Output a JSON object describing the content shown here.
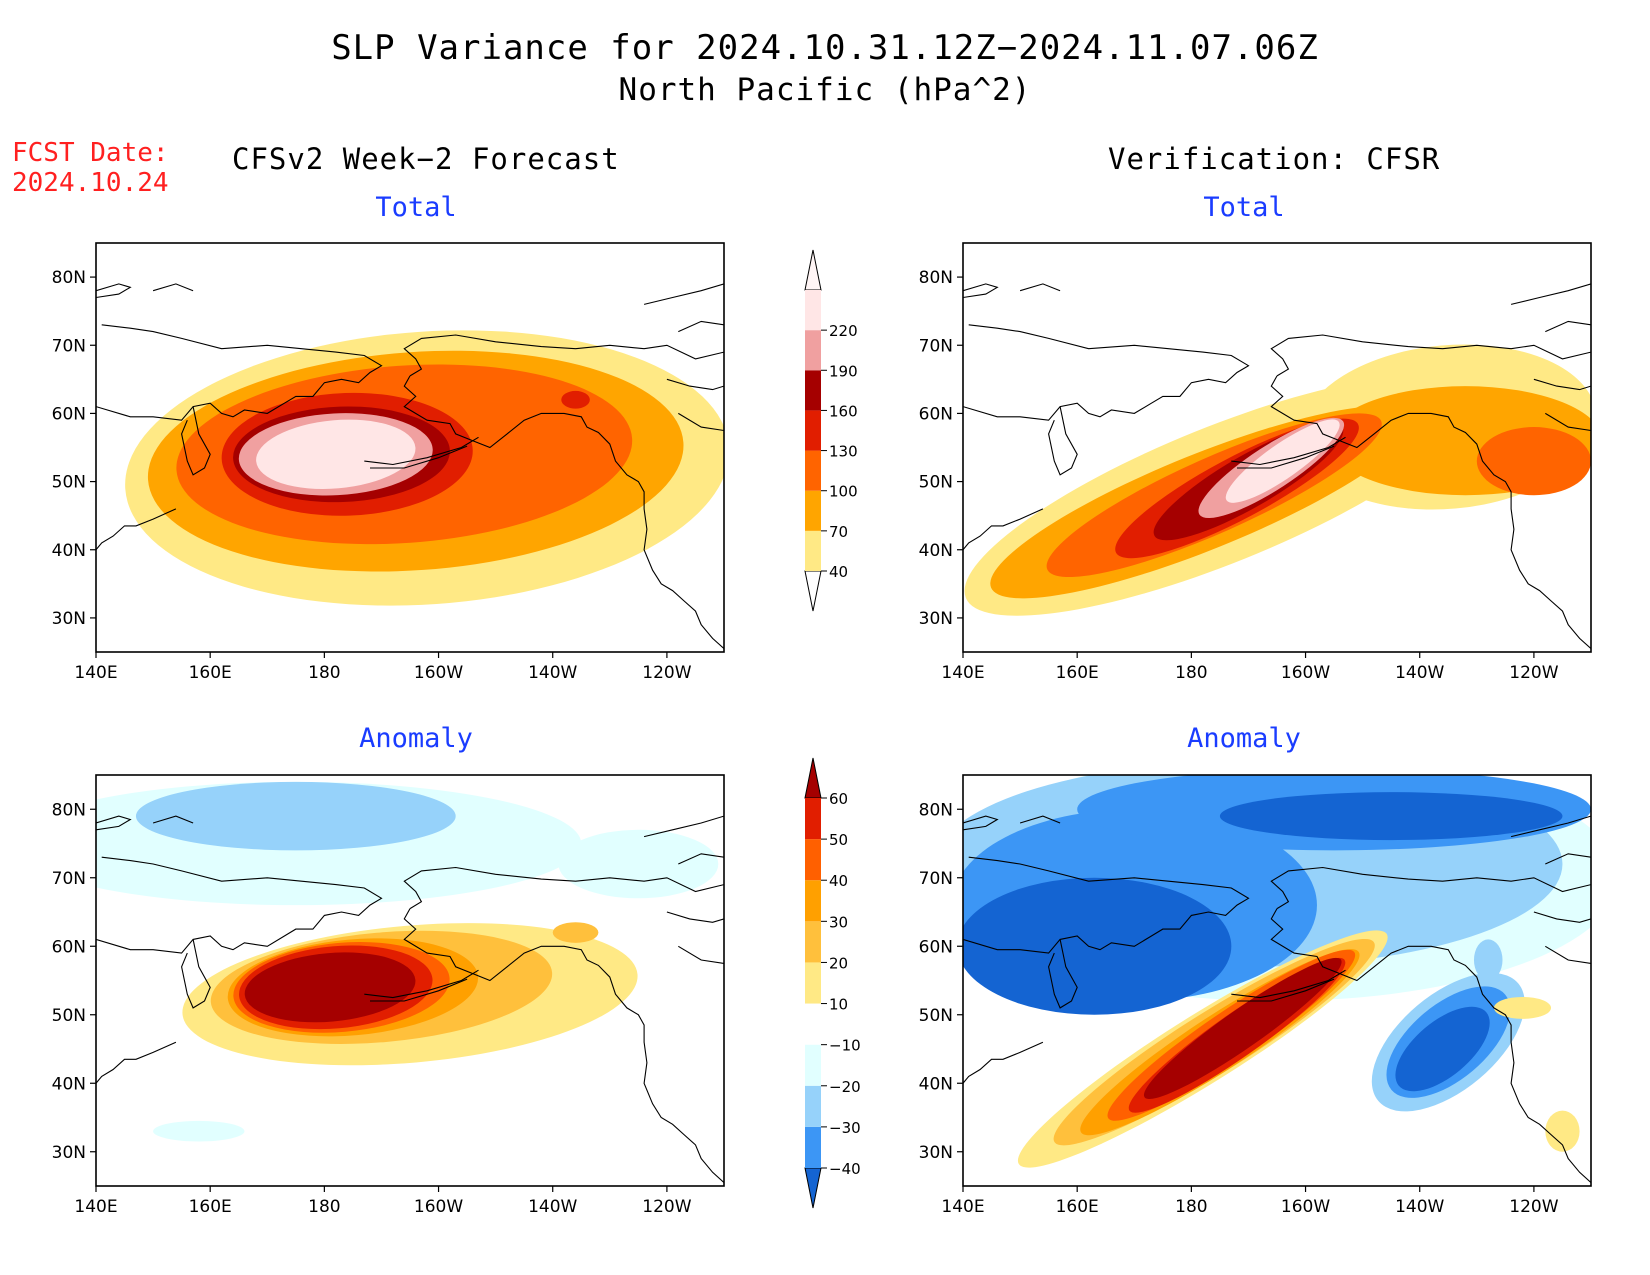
{
  "title_line1": "SLP Variance for 2024.10.31.12Z−2024.11.07.06Z",
  "title_line2": "North Pacific (hPa^2)",
  "fcst_label": "FCST Date:",
  "fcst_date": "2024.10.24",
  "left_header": "CFSv2 Week−2 Forecast",
  "right_header": "Verification: CFSR",
  "panel_subtitles": {
    "top_left": "Total",
    "top_right": "Total",
    "bottom_left": "Anomaly",
    "bottom_right": "Anomaly"
  },
  "lat_labels": [
    "80N",
    "70N",
    "60N",
    "50N",
    "40N",
    "30N"
  ],
  "lon_labels": [
    "140E",
    "160E",
    "180",
    "160W",
    "140W",
    "120W"
  ],
  "colorbars": {
    "total": {
      "levels": [
        "40",
        "70",
        "100",
        "130",
        "160",
        "190",
        "220"
      ],
      "colors": [
        "#ffe985",
        "#ffa500",
        "#ff6400",
        "#e11e00",
        "#a50000",
        "#f0a0a0",
        "#ffe6e6"
      ],
      "extend_colors": {
        "below": "#ffffff",
        "above": "#fff5f5"
      }
    },
    "anomaly": {
      "levels": [
        "−40",
        "−30",
        "−20",
        "−10",
        "10",
        "20",
        "30",
        "40",
        "50",
        "60"
      ],
      "colors": [
        "#1464d2",
        "#3c96f5",
        "#96d2fa",
        "#e1ffff",
        "#ffffff",
        "#ffe985",
        "#ffc03c",
        "#ffa000",
        "#ff6000",
        "#e11e00",
        "#a50000"
      ]
    }
  },
  "chart_data": [
    {
      "type": "heatmap",
      "panel": "CFSv2 Week−2 Forecast — Total",
      "units": "hPa^2",
      "xlim": [
        140,
        250
      ],
      "ylim": [
        25,
        85
      ],
      "fields": [
        {
          "level": 40,
          "color": "#ffe985",
          "center": [
            198,
            52
          ],
          "radius": [
            53,
            20
          ],
          "angle": 4
        },
        {
          "level": 70,
          "color": "#ffa500",
          "center": [
            196,
            53
          ],
          "radius": [
            47,
            16
          ],
          "angle": 4
        },
        {
          "level": 100,
          "color": "#ff6400",
          "center": [
            194,
            54
          ],
          "radius": [
            40,
            13
          ],
          "angle": 4
        },
        {
          "level": 130,
          "color": "#e11e00",
          "center": [
            184,
            54
          ],
          "radius": [
            22,
            9
          ],
          "angle": 2
        },
        {
          "level": 160,
          "color": "#a50000",
          "center": [
            183,
            54
          ],
          "radius": [
            19,
            7
          ],
          "angle": 2
        },
        {
          "level": 190,
          "color": "#f0a0a0",
          "center": [
            182,
            54
          ],
          "radius": [
            17,
            6
          ],
          "angle": 3
        },
        {
          "level": 220,
          "color": "#ffe6e6",
          "center": [
            182,
            54
          ],
          "radius": [
            14,
            5
          ],
          "angle": 5
        },
        {
          "level": 130,
          "color": "#e11e00",
          "center": [
            224,
            62
          ],
          "radius": [
            2.5,
            1.3
          ],
          "angle": 0
        }
      ]
    },
    {
      "type": "heatmap",
      "panel": "Verification: CFSR — Total",
      "units": "hPa^2",
      "xlim": [
        140,
        250
      ],
      "ylim": [
        25,
        85
      ],
      "fields": [
        {
          "level": 40,
          "color": "#ffe985",
          "center": [
            185,
            48
          ],
          "radius": [
            48,
            10
          ],
          "angle": 22
        },
        {
          "level": 40,
          "color": "#ffe985",
          "center": [
            225,
            58
          ],
          "radius": [
            26,
            12
          ],
          "angle": 5
        },
        {
          "level": 70,
          "color": "#ffa500",
          "center": [
            182,
            47
          ],
          "radius": [
            40,
            7
          ],
          "angle": 22
        },
        {
          "level": 70,
          "color": "#ffa500",
          "center": [
            228,
            56
          ],
          "radius": [
            24,
            8
          ],
          "angle": 0
        },
        {
          "level": 100,
          "color": "#ff6400",
          "center": [
            184,
            48
          ],
          "radius": [
            32,
            5.5
          ],
          "angle": 24
        },
        {
          "level": 100,
          "color": "#ff6400",
          "center": [
            240,
            53
          ],
          "radius": [
            10,
            5
          ],
          "angle": 0
        },
        {
          "level": 130,
          "color": "#e11e00",
          "center": [
            188,
            49
          ],
          "radius": [
            24,
            4.5
          ],
          "angle": 28
        },
        {
          "level": 160,
          "color": "#a50000",
          "center": [
            190,
            50
          ],
          "radius": [
            19,
            3.8
          ],
          "angle": 30
        },
        {
          "level": 190,
          "color": "#f0a0a0",
          "center": [
            194,
            52
          ],
          "radius": [
            15,
            3.2
          ],
          "angle": 33
        },
        {
          "level": 220,
          "color": "#ffe6e6",
          "center": [
            196,
            53
          ],
          "radius": [
            12,
            2.5
          ],
          "angle": 35
        }
      ]
    },
    {
      "type": "heatmap",
      "panel": "CFSv2 Week−2 Forecast — Anomaly",
      "units": "hPa^2",
      "xlim": [
        140,
        250
      ],
      "ylim": [
        25,
        85
      ],
      "fields": [
        {
          "level": -10,
          "color": "#e1ffff",
          "center": [
            175,
            75
          ],
          "radius": [
            50,
            9
          ],
          "angle": 0
        },
        {
          "level": -20,
          "color": "#96d2fa",
          "center": [
            175,
            79
          ],
          "radius": [
            28,
            5
          ],
          "angle": 0
        },
        {
          "level": -10,
          "color": "#e1ffff",
          "center": [
            235,
            72
          ],
          "radius": [
            14,
            5
          ],
          "angle": 0
        },
        {
          "level": -10,
          "color": "#e1ffff",
          "center": [
            158,
            33
          ],
          "radius": [
            8,
            1.5
          ],
          "angle": 0
        },
        {
          "level": 10,
          "color": "#ffe985",
          "center": [
            195,
            53
          ],
          "radius": [
            40,
            10
          ],
          "angle": 5
        },
        {
          "level": 20,
          "color": "#ffc03c",
          "center": [
            190,
            54
          ],
          "radius": [
            30,
            8
          ],
          "angle": 5
        },
        {
          "level": 30,
          "color": "#ffa000",
          "center": [
            185,
            54
          ],
          "radius": [
            22,
            7
          ],
          "angle": 5
        },
        {
          "level": 40,
          "color": "#ff6000",
          "center": [
            183,
            54
          ],
          "radius": [
            19,
            6.5
          ],
          "angle": 5
        },
        {
          "level": 50,
          "color": "#e11e00",
          "center": [
            182,
            54
          ],
          "radius": [
            17,
            6
          ],
          "angle": 5
        },
        {
          "level": 60,
          "color": "#a50000",
          "center": [
            181,
            54
          ],
          "radius": [
            15,
            5
          ],
          "angle": 5
        },
        {
          "level": 20,
          "color": "#ffc03c",
          "center": [
            224,
            62
          ],
          "radius": [
            4,
            1.5
          ],
          "angle": 0
        }
      ]
    },
    {
      "type": "heatmap",
      "panel": "Verification: CFSR — Anomaly",
      "units": "hPa^2",
      "xlim": [
        140,
        250
      ],
      "ylim": [
        25,
        85
      ],
      "fields": [
        {
          "level": -10,
          "color": "#e1ffff",
          "center": [
            195,
            70
          ],
          "radius": [
            60,
            18
          ],
          "angle": 0
        },
        {
          "level": -20,
          "color": "#96d2fa",
          "center": [
            190,
            72
          ],
          "radius": [
            55,
            15
          ],
          "angle": 0
        },
        {
          "level": -30,
          "color": "#3c96f5",
          "center": [
            170,
            66
          ],
          "radius": [
            32,
            14
          ],
          "angle": 0
        },
        {
          "level": -30,
          "color": "#3c96f5",
          "center": [
            205,
            80
          ],
          "radius": [
            45,
            6
          ],
          "angle": 0
        },
        {
          "level": -40,
          "color": "#1464d2",
          "center": [
            163,
            60
          ],
          "radius": [
            24,
            10
          ],
          "angle": 0
        },
        {
          "level": -40,
          "color": "#1464d2",
          "center": [
            215,
            79
          ],
          "radius": [
            30,
            3.5
          ],
          "angle": 0
        },
        {
          "level": -20,
          "color": "#96d2fa",
          "center": [
            225,
            46
          ],
          "radius": [
            16,
            7
          ],
          "angle": 40
        },
        {
          "level": -30,
          "color": "#3c96f5",
          "center": [
            225,
            46
          ],
          "radius": [
            13,
            5.5
          ],
          "angle": 40
        },
        {
          "level": -40,
          "color": "#1464d2",
          "center": [
            224,
            45
          ],
          "radius": [
            10,
            4
          ],
          "angle": 40
        },
        {
          "level": -20,
          "color": "#96d2fa",
          "center": [
            232,
            58
          ],
          "radius": [
            2.5,
            3
          ],
          "angle": 0
        },
        {
          "level": 10,
          "color": "#ffe985",
          "center": [
            182,
            45
          ],
          "radius": [
            38,
            5
          ],
          "angle": 32
        },
        {
          "level": 20,
          "color": "#ffc03c",
          "center": [
            184,
            46
          ],
          "radius": [
            33,
            4.5
          ],
          "angle": 32
        },
        {
          "level": 30,
          "color": "#ffa000",
          "center": [
            185,
            46
          ],
          "radius": [
            29,
            4
          ],
          "angle": 33
        },
        {
          "level": 40,
          "color": "#ff6000",
          "center": [
            187,
            47
          ],
          "radius": [
            26,
            3.6
          ],
          "angle": 34
        },
        {
          "level": 50,
          "color": "#e11e00",
          "center": [
            188,
            47
          ],
          "radius": [
            23,
            3.2
          ],
          "angle": 35
        },
        {
          "level": 60,
          "color": "#a50000",
          "center": [
            189,
            48
          ],
          "radius": [
            21,
            2.8
          ],
          "angle": 35
        },
        {
          "level": 10,
          "color": "#ffe985",
          "center": [
            238,
            51
          ],
          "radius": [
            5,
            1.6
          ],
          "angle": 0
        },
        {
          "level": 10,
          "color": "#ffe985",
          "center": [
            245,
            33
          ],
          "radius": [
            3,
            3
          ],
          "angle": 0
        }
      ]
    }
  ]
}
